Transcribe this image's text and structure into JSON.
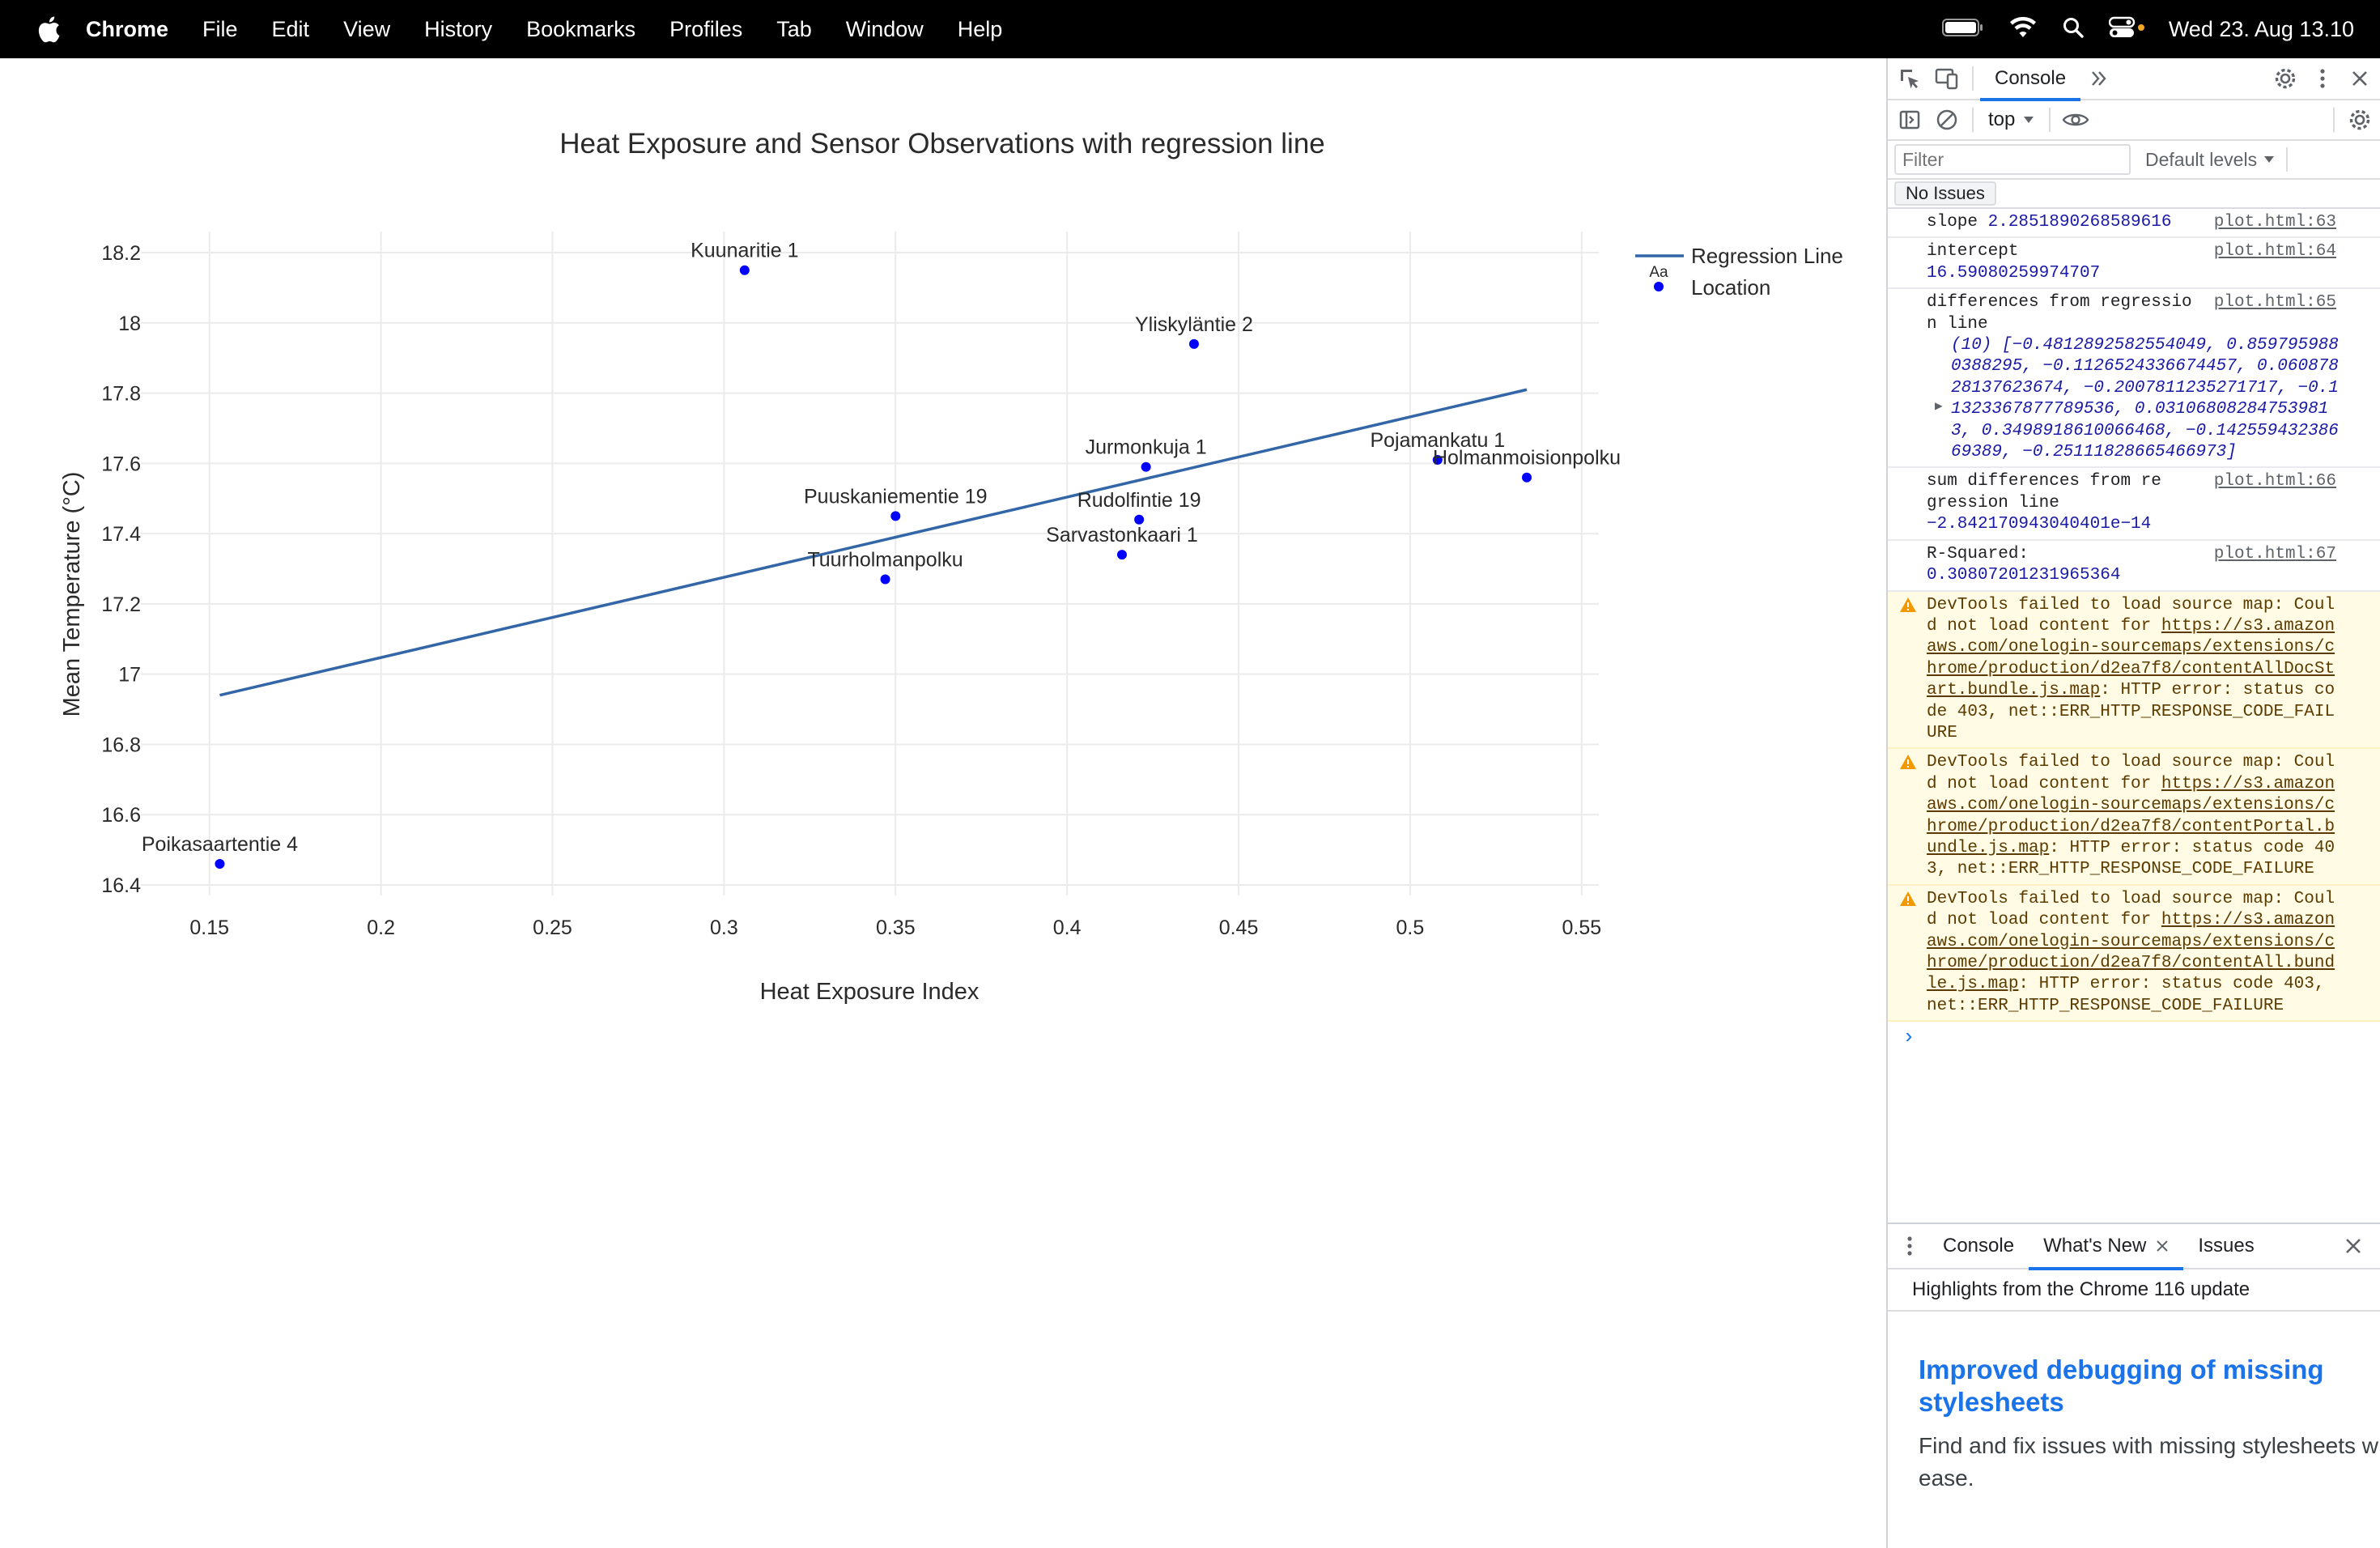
{
  "menubar": {
    "app_name": "Chrome",
    "items": [
      "File",
      "Edit",
      "View",
      "History",
      "Bookmarks",
      "Profiles",
      "Tab",
      "Window",
      "Help"
    ],
    "clock": "Wed 23. Aug  13.10",
    "status_icons": [
      "battery-icon",
      "wifi-icon",
      "spotlight-search-icon",
      "control-center-icon"
    ]
  },
  "chart_data": {
    "type": "scatter",
    "title": "Heat Exposure and Sensor Observations with regression line",
    "xlabel": "Heat Exposure Index",
    "ylabel": "Mean Temperature (°C)",
    "xlim": [
      0.13,
      0.555
    ],
    "ylim": [
      16.37,
      18.26
    ],
    "xticks": [
      0.15,
      0.2,
      0.25,
      0.3,
      0.35,
      0.4,
      0.45,
      0.5,
      0.55
    ],
    "xtick_labels": [
      "0.15",
      "0.2",
      "0.25",
      "0.3",
      "0.35",
      "0.4",
      "0.45",
      "0.5",
      "0.55"
    ],
    "yticks": [
      16.4,
      16.6,
      16.8,
      17,
      17.2,
      17.4,
      17.6,
      17.8,
      18,
      18.2
    ],
    "ytick_labels": [
      "16.4",
      "16.6",
      "16.8",
      "17",
      "17.2",
      "17.4",
      "17.6",
      "17.8",
      "18",
      "18.2"
    ],
    "grid": true,
    "legend_position": "top-right",
    "legend": {
      "entries": [
        "Regression Line",
        "Location"
      ],
      "marker_text": "Aa"
    },
    "series": [
      {
        "name": "Location",
        "type": "scatter",
        "color": "#0000ff",
        "points": [
          {
            "label": "Poikasaartentie 4",
            "x": 0.153,
            "y": 16.46
          },
          {
            "label": "Kuunaritie 1",
            "x": 0.306,
            "y": 18.15
          },
          {
            "label": "Tuurholmanpolku",
            "x": 0.347,
            "y": 17.27
          },
          {
            "label": "Puuskaniementie 19",
            "x": 0.35,
            "y": 17.45
          },
          {
            "label": "Sarvastonkaari 1",
            "x": 0.416,
            "y": 17.34
          },
          {
            "label": "Rudolfintie 19",
            "x": 0.421,
            "y": 17.44
          },
          {
            "label": "Jurmonkuja 1",
            "x": 0.423,
            "y": 17.59
          },
          {
            "label": "Yliskyläntie 2",
            "x": 0.437,
            "y": 17.94
          },
          {
            "label": "Pojamankatu 1",
            "x": 0.508,
            "y": 17.61
          },
          {
            "label": "Holmanmoisionpolku",
            "x": 0.534,
            "y": 17.56
          }
        ]
      },
      {
        "name": "Regression Line",
        "type": "line",
        "color": "#3366a6",
        "x": [
          0.153,
          0.534
        ],
        "y": [
          16.94,
          17.81
        ]
      }
    ]
  },
  "devtools": {
    "top_tab": "Console",
    "context": "top",
    "filter_placeholder": "Filter",
    "levels": "Default levels",
    "no_issues": "No Issues",
    "messages": [
      {
        "label": "slope",
        "value": "2.2851890268589616",
        "source": "plot.html:63"
      },
      {
        "label": "intercept",
        "value": "16.59080259974707",
        "source": "plot.html:64"
      },
      {
        "label": "differences from regression line",
        "value": "(10) [−0.4812892582554049, 0.8597959880388295, −0.1126524336674457, 0.06087828137623674, −0.2007811235271717, −0.11323367877789536, 0.031068082847539813, 0.3498918610066468, −0.1425594323866938‌9, −0.25111828665466973]",
        "source": "plot.html:65"
      },
      {
        "label": "sum differences from regression line",
        "value": "−2.842170943040401e−14",
        "source": "plot.html:66"
      },
      {
        "label": "R-Squared:",
        "value": "0.30807201231965364",
        "source": "plot.html:67"
      }
    ],
    "warnings": [
      {
        "head": "DevTools failed to load source map: Could not load content for ",
        "link": "https://s3.amazonaws.com/onelogin-sourcemaps/extensions/chrome/production/d2ea7f8/contentAllDocStart.bundle.js.map",
        "tail": ": HTTP error: status code 403, net::ERR_HTTP_RESPONSE_CODE_FAILURE"
      },
      {
        "head": "DevTools failed to load source map: Could not load content for ",
        "link": "https://s3.amazonaws.com/onelogin-sourcemaps/extensions/chrome/production/d2ea7f8/contentPortal.bundle.js.map",
        "tail": ": HTTP error: status code 403, net::ERR_HTTP_RESPONSE_CODE_FAILURE"
      },
      {
        "head": "DevTools failed to load source map: Could not load content for ",
        "link": "https://s3.amazonaws.com/onelogin-sourcemaps/extensions/chrome/production/d2ea7f8/contentAll.bundle.js.map",
        "tail": ": HTTP error: status code 403, net::ERR_HTTP_RESPONSE_CODE_FAILURE"
      }
    ],
    "drawer_tabs": [
      "Console",
      "What's New",
      "Issues"
    ],
    "drawer_active": "What's New",
    "highlights": "Highlights from the Chrome 116 update",
    "whatsnew_title": "Improved debugging of missing stylesheets",
    "whatsnew_body": "Find and fix issues with missing stylesheets w ease."
  }
}
